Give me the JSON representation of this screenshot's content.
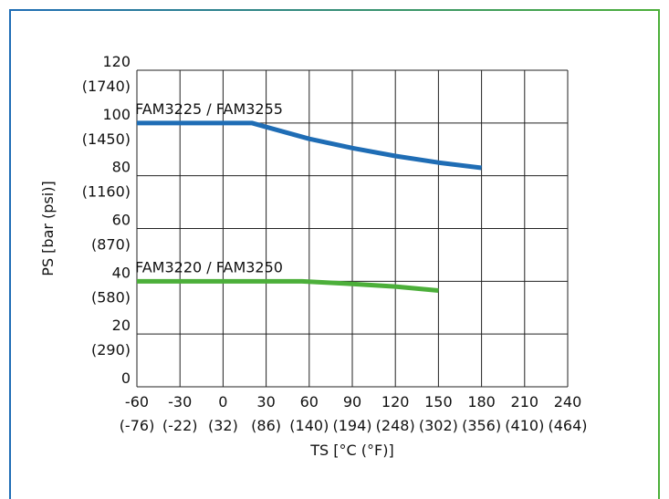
{
  "chart_data": {
    "type": "line",
    "xlabel": "TS [°C (°F)]",
    "ylabel": "PS [bar (psi)]",
    "xlim": [
      -60,
      240
    ],
    "ylim": [
      0,
      120
    ],
    "x_ticks": [
      {
        "value": -60,
        "label": "-60",
        "sub": "(-76)"
      },
      {
        "value": -30,
        "label": "-30",
        "sub": "(-22)"
      },
      {
        "value": 0,
        "label": "0",
        "sub": "(32)"
      },
      {
        "value": 30,
        "label": "30",
        "sub": "(86)"
      },
      {
        "value": 60,
        "label": "60",
        "sub": "(140)"
      },
      {
        "value": 90,
        "label": "90",
        "sub": "(194)"
      },
      {
        "value": 120,
        "label": "120",
        "sub": "(248)"
      },
      {
        "value": 150,
        "label": "150",
        "sub": "(302)"
      },
      {
        "value": 180,
        "label": "180",
        "sub": "(356)"
      },
      {
        "value": 210,
        "label": "210",
        "sub": "(410)"
      },
      {
        "value": 240,
        "label": "240",
        "sub": "(464)"
      }
    ],
    "y_ticks": [
      {
        "value": 0,
        "label": "0",
        "sub": ""
      },
      {
        "value": 20,
        "label": "20",
        "sub": "(290)"
      },
      {
        "value": 40,
        "label": "40",
        "sub": "(580)"
      },
      {
        "value": 60,
        "label": "60",
        "sub": "(870)"
      },
      {
        "value": 80,
        "label": "80",
        "sub": "(1160)"
      },
      {
        "value": 100,
        "label": "100",
        "sub": "(1450)"
      },
      {
        "value": 120,
        "label": "120",
        "sub": "(1740)"
      }
    ],
    "grid": true,
    "series": [
      {
        "name": "FAM3225 / FAM3255",
        "color": "#1f6db5",
        "x": [
          -60,
          20,
          30,
          60,
          90,
          120,
          150,
          180
        ],
        "y": [
          100,
          100,
          98.5,
          94,
          90.5,
          87.5,
          85,
          83
        ]
      },
      {
        "name": "FAM3220 / FAM3250",
        "color": "#4caf3a",
        "x": [
          -60,
          55,
          90,
          120,
          150
        ],
        "y": [
          40,
          40,
          39,
          38,
          36.5
        ]
      }
    ]
  },
  "colors": {
    "frame_left": "#1f6db5",
    "frame_right": "#4caf3a",
    "grid": "#222222"
  }
}
